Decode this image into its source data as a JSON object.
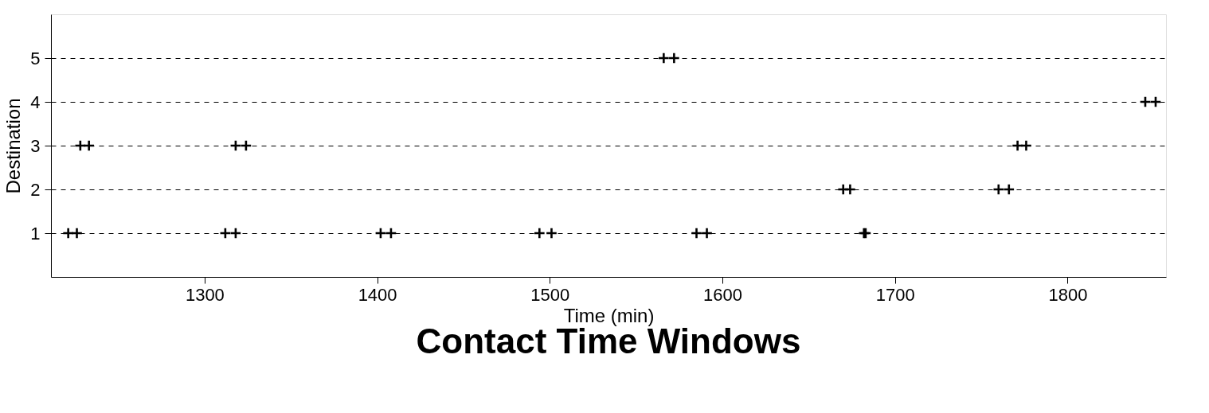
{
  "chart_data": {
    "type": "scatter",
    "title": "Contact Time Windows",
    "xlabel": "Time (min)",
    "ylabel": "Destination",
    "x": [
      1221,
      1226,
      1312,
      1318,
      1402,
      1408,
      1494,
      1501,
      1585,
      1591,
      1682,
      1683,
      1670,
      1674,
      1760,
      1766,
      1228,
      1233,
      1318,
      1324,
      1771,
      1776,
      1845,
      1851,
      1566,
      1572
    ],
    "series": [
      {
        "color": "#000000",
        "values": [
          1,
          1,
          1,
          1,
          1,
          1,
          1,
          1,
          1,
          1,
          1,
          1,
          2,
          2,
          2,
          2,
          3,
          3,
          3,
          3,
          3,
          3,
          4,
          4,
          5,
          5
        ]
      }
    ],
    "xlim": [
      1211,
      1857
    ],
    "xticks": [
      1300,
      1400,
      1500,
      1600,
      1700,
      1800
    ],
    "ylim": [
      0,
      6
    ],
    "yticks": [
      1,
      2,
      3,
      4,
      5
    ],
    "grid": "y",
    "marker": "cross",
    "legend": false
  }
}
